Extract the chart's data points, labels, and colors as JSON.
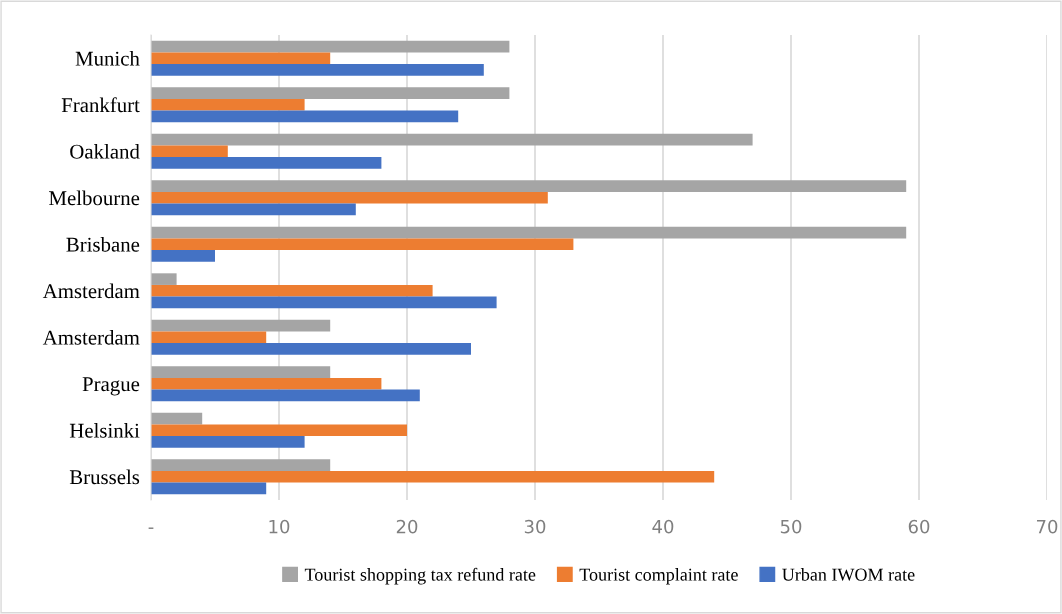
{
  "chart_data": {
    "type": "bar",
    "orientation": "horizontal",
    "categories": [
      "Munich",
      "Frankfurt",
      "Oakland",
      "Melbourne",
      "Brisbane",
      "Amsterdam",
      "Amsterdam",
      "Prague",
      "Helsinki",
      "Brussels"
    ],
    "series": [
      {
        "name": "Tourist shopping tax refund rate",
        "color": "#a5a5a5",
        "values": [
          28,
          28,
          47,
          59,
          59,
          2,
          14,
          14,
          4,
          14
        ]
      },
      {
        "name": "Tourist complaint rate",
        "color": "#ed7d31",
        "values": [
          14,
          12,
          6,
          31,
          33,
          22,
          9,
          18,
          20,
          44
        ]
      },
      {
        "name": "Urban IWOM rate",
        "color": "#4472c4",
        "values": [
          26,
          24,
          18,
          16,
          5,
          27,
          25,
          21,
          12,
          9
        ]
      }
    ],
    "xlim": [
      0,
      70
    ],
    "xticks": [
      {
        "value": 0,
        "label": "-"
      },
      10,
      20,
      30,
      40,
      50,
      60,
      70
    ],
    "grid": "x",
    "legend": "bottom"
  }
}
